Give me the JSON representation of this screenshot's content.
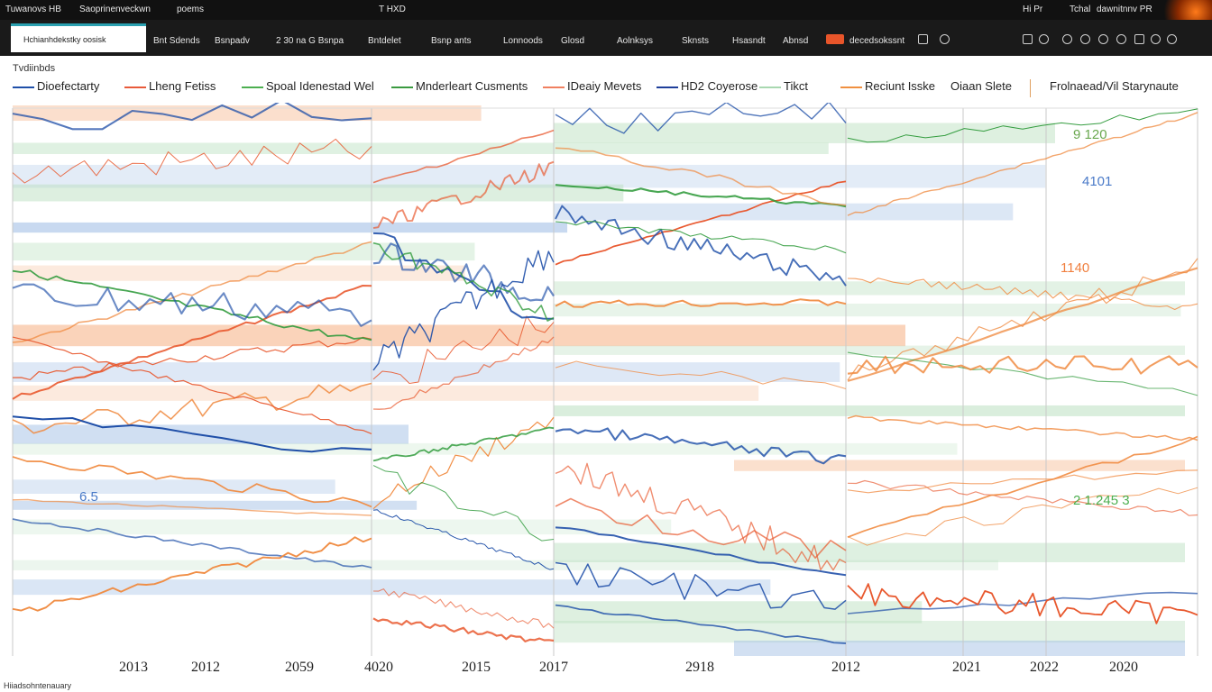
{
  "titlebar": {
    "left_items": [
      "Tuwanovs HB",
      "Saoprinenveckwn",
      "poems"
    ],
    "center_title": "T HXD",
    "right_items": [
      "Hi Pr",
      "Tchal",
      "dawnitnnv PR"
    ]
  },
  "toolbar": {
    "tab_label": "Hchianhdekstky oosisk",
    "items": [
      "Bnt Sdends",
      "Bsnpadv",
      "2 30 na G Bsnpa",
      "Bntdelet",
      "Bsnp ants",
      "Lonnoods",
      "Glosd",
      "Aolnksys",
      "Sknsts",
      "Hsasndt",
      "Abnsd",
      "decedsokssnt"
    ]
  },
  "legend": {
    "title": "Tvdiinbds",
    "items": [
      {
        "label": "Dioefectarty",
        "color": "#1f4fa8"
      },
      {
        "label": "Lheng Fetiss",
        "color": "#e85a3a"
      },
      {
        "label": "Spoal Idenestad Wel",
        "color": "#4caf50"
      },
      {
        "label": "Mnderleart Cusments",
        "color": "#3a9a40"
      },
      {
        "label": "IDeaiy Mevets",
        "color": "#f08060"
      },
      {
        "label": "HD2 Coyerose",
        "color": "#1f3f9a"
      },
      {
        "label": "Tikct",
        "color": "#a8d8b0"
      },
      {
        "label": "Reciunt Isske",
        "color": "#f09040"
      },
      {
        "label": "Oiaan Slete",
        "color": ""
      },
      {
        "label": "Frolnaead/Vil Starynaute",
        "color": ""
      }
    ]
  },
  "chart_data": {
    "type": "line",
    "title": "",
    "xlabel": "",
    "ylabel": "",
    "x_tick_labels": [
      "2013",
      "2012",
      "2059",
      "4020",
      "2015",
      "2017",
      "2918",
      "2012",
      "2021",
      "2022",
      "2020"
    ],
    "annotations": [
      {
        "text": "9 120",
        "color": "#6aa84f"
      },
      {
        "text": "4101",
        "color": "#4a7ac8"
      },
      {
        "text": "1140",
        "color": "#f08040"
      },
      {
        "text": "2 1.245 3",
        "color": "#4caf50"
      },
      {
        "text": "6.5",
        "color": "#4a7ac8"
      }
    ],
    "colors": {
      "blue": "#1f4fa8",
      "red": "#e8552a",
      "green": "#2e9a3a",
      "orange": "#f08a40",
      "band_blue": "#9fbde4",
      "band_orange": "#f6b48a",
      "band_green": "#b9dfbf"
    },
    "grid": true,
    "legend_position": "top"
  },
  "footer": {
    "text": "Hiiadsohntenauary"
  }
}
